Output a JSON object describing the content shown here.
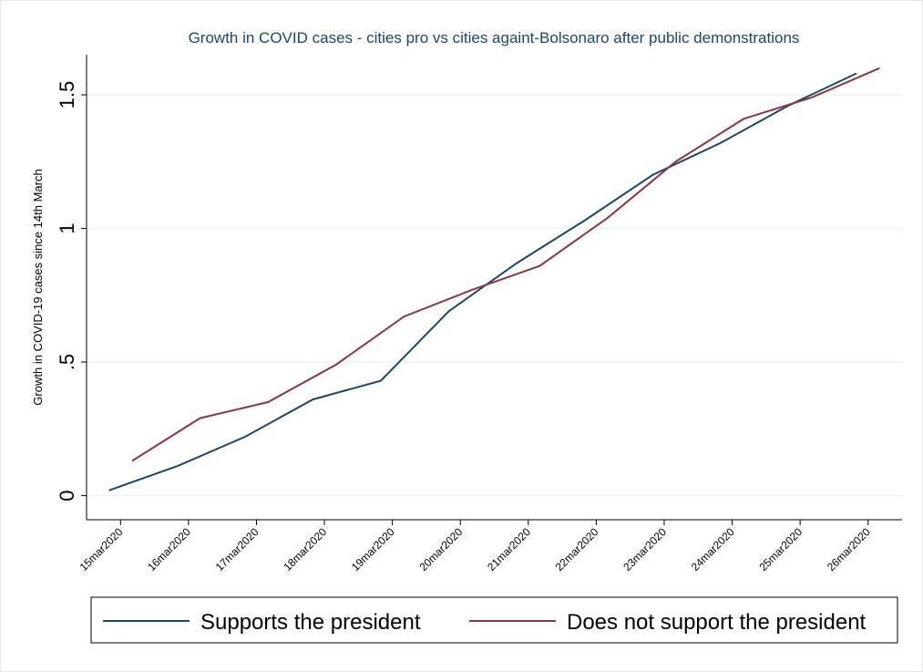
{
  "chart_data": {
    "type": "line",
    "title": "Growth in COVID cases - cities pro vs cities againt-Bolsonaro after public demonstrations",
    "y_label": "Growth in COVID-19 cases since 14th March",
    "xlim": [
      14.5,
      26.5
    ],
    "xticks": [
      {
        "value": 15,
        "label": "15mar2020"
      },
      {
        "value": 16,
        "label": "16mar2020"
      },
      {
        "value": 17,
        "label": "17mar2020"
      },
      {
        "value": 18,
        "label": "18mar2020"
      },
      {
        "value": 19,
        "label": "19mar2020"
      },
      {
        "value": 20,
        "label": "20mar2020"
      },
      {
        "value": 21,
        "label": "21mar2020"
      },
      {
        "value": 22,
        "label": "22mar2020"
      },
      {
        "value": 23,
        "label": "23mar2020"
      },
      {
        "value": 24,
        "label": "24mar2020"
      },
      {
        "value": 25,
        "label": "25mar2020"
      },
      {
        "value": 26,
        "label": "26mar2020"
      }
    ],
    "ylim": [
      -0.09,
      1.65
    ],
    "yticks": [
      0,
      {
        "value": 0.5,
        "label": ".5"
      },
      1,
      1.5
    ],
    "grid": true,
    "legend": "bottom",
    "series": [
      {
        "name": "Supports the president",
        "color": "#1a476f",
        "x": [
          14.83,
          15.83,
          16.83,
          17.83,
          18.83,
          19.83,
          20.83,
          21.83,
          22.83,
          23.83,
          24.83,
          25.83
        ],
        "values": [
          0.02,
          0.11,
          0.22,
          0.36,
          0.43,
          0.69,
          0.87,
          1.03,
          1.2,
          1.32,
          1.46,
          1.58
        ]
      },
      {
        "name": "Does not support the president",
        "color": "#90353b",
        "x": [
          15.17,
          16.17,
          17.17,
          18.17,
          19.17,
          20.17,
          21.17,
          22.17,
          23.17,
          24.17,
          25.17,
          26.17
        ],
        "values": [
          0.13,
          0.29,
          0.35,
          0.49,
          0.67,
          0.77,
          0.86,
          1.04,
          1.25,
          1.41,
          1.49,
          1.6
        ]
      }
    ]
  }
}
